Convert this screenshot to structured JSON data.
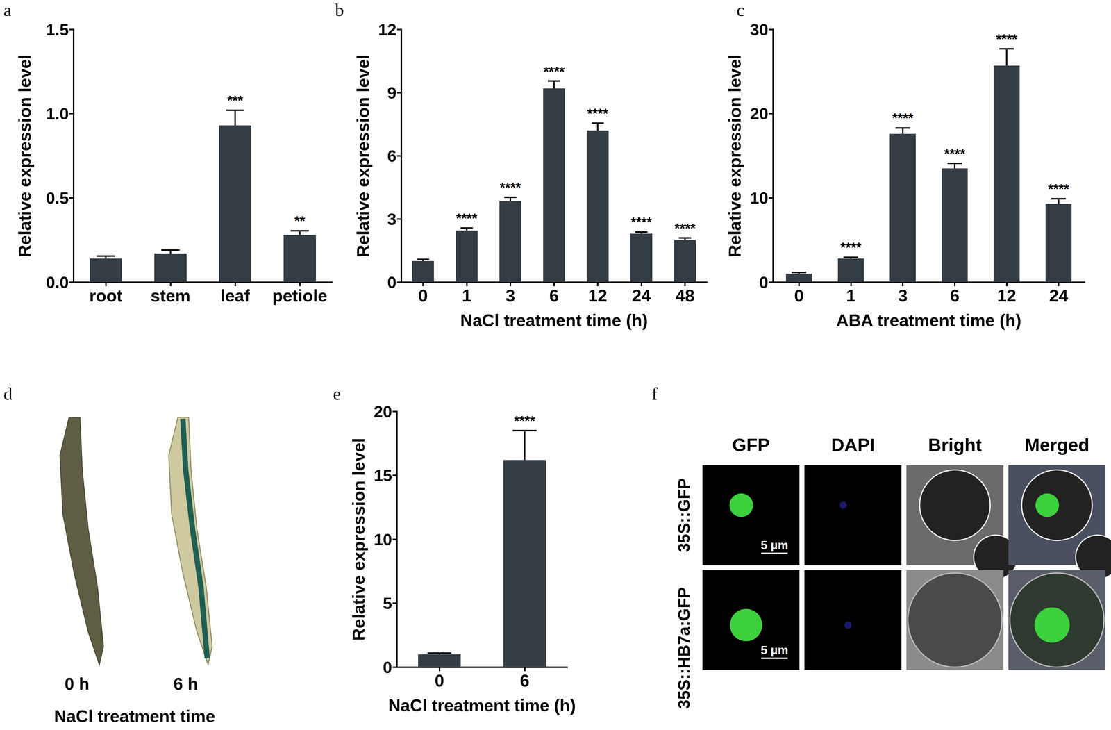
{
  "chart_data": [
    {
      "panel": "a",
      "type": "bar",
      "categories": [
        "root",
        "stem",
        "leaf",
        "petiole"
      ],
      "values": [
        0.14,
        0.17,
        0.93,
        0.28
      ],
      "errors": [
        0.015,
        0.02,
        0.09,
        0.025
      ],
      "significance": [
        null,
        null,
        "***",
        "**"
      ],
      "ylabel": "Relative expression level",
      "color": "#343c44",
      "ylim": [
        0,
        1.5
      ],
      "yticks": [
        {
          "value": 0,
          "label": "0.0"
        },
        {
          "value": 0.5,
          "label": "0.5"
        },
        {
          "value": 1,
          "label": "1.0"
        },
        {
          "value": 1.5,
          "label": "1.5"
        }
      ],
      "grid": false
    },
    {
      "panel": "b",
      "type": "bar",
      "categories": [
        "0",
        "1",
        "3",
        "6",
        "12",
        "24",
        "48"
      ],
      "values": [
        1.0,
        2.45,
        3.85,
        9.2,
        7.2,
        2.3,
        2.0
      ],
      "errors": [
        0.08,
        0.12,
        0.18,
        0.35,
        0.35,
        0.08,
        0.1
      ],
      "significance": [
        null,
        "****",
        "****",
        "****",
        "****",
        "****",
        "****"
      ],
      "xlabel": "NaCl treatment time (h)",
      "ylabel": "Relative expression level",
      "color": "#343c44",
      "ylim": [
        0,
        12
      ],
      "yticks": [
        0,
        3,
        6,
        9,
        12
      ],
      "grid": false
    },
    {
      "panel": "c",
      "type": "bar",
      "categories": [
        "0",
        "1",
        "3",
        "6",
        "12",
        "24"
      ],
      "values": [
        1.0,
        2.8,
        17.6,
        13.5,
        25.7,
        9.3
      ],
      "errors": [
        0.15,
        0.15,
        0.7,
        0.6,
        2.0,
        0.6
      ],
      "significance": [
        null,
        "****",
        "****",
        "****",
        "****",
        "****"
      ],
      "xlabel": "ABA treatment time (h)",
      "ylabel": "Relative expression level",
      "color": "#343c44",
      "ylim": [
        0,
        30
      ],
      "yticks": [
        0,
        10,
        20,
        30
      ],
      "grid": false
    },
    {
      "panel": "e",
      "type": "bar",
      "categories": [
        "0",
        "6"
      ],
      "values": [
        1.0,
        16.2
      ],
      "errors": [
        0.1,
        2.3
      ],
      "significance": [
        null,
        "****"
      ],
      "xlabel": "NaCl treatment time (h)",
      "ylabel": "Relative expression level",
      "color": "#343c44",
      "ylim": [
        0,
        20
      ],
      "yticks": [
        0,
        5,
        10,
        15,
        20
      ],
      "grid": false
    }
  ],
  "image_panels": [
    {
      "panel": "d",
      "labels": [
        "0 h",
        "6 h"
      ],
      "xlabel": "NaCl treatment time"
    },
    {
      "panel": "f",
      "columns": [
        "GFP",
        "DAPI",
        "Bright",
        "Merged"
      ],
      "rows": [
        "35S::GFP",
        "35S::HB7a:GFP"
      ],
      "scale_bar": "5 μm"
    }
  ]
}
